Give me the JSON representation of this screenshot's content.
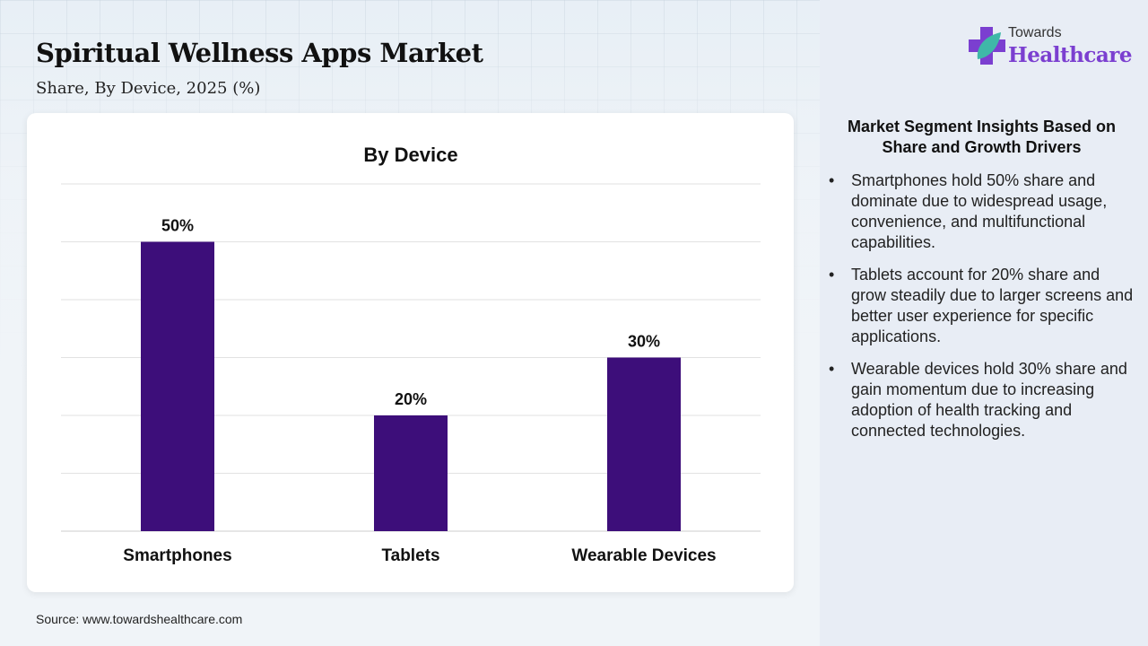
{
  "title": "Spiritual Wellness Apps Market",
  "subtitle": "Share, By Device, 2025 (%)",
  "source": "Source: www.towardshealthcare.com",
  "logo": {
    "line1": "Towards",
    "line2": "Healthcare"
  },
  "insights": {
    "heading": "Market Segment Insights Based on Share and Growth Drivers",
    "items": [
      "Smartphones hold 50% share and dominate due to widespread usage, convenience, and multifunctional capabilities.",
      "Tablets account for 20% share and grow steadily due to larger screens and better user experience for specific applications.",
      "Wearable devices hold 30% share and gain momentum due to increasing adoption of health tracking and connected technologies."
    ]
  },
  "colors": {
    "bar": "#3d0e7a",
    "accent": "#7b3fd0"
  },
  "chart_data": {
    "type": "bar",
    "title": "By Device",
    "categories": [
      "Smartphones",
      "Tablets",
      "Wearable Devices"
    ],
    "values": [
      50,
      20,
      30
    ],
    "data_labels": [
      "50%",
      "20%",
      "30%"
    ],
    "ylim": [
      0,
      60
    ],
    "grid": true,
    "xlabel": "",
    "ylabel": ""
  }
}
